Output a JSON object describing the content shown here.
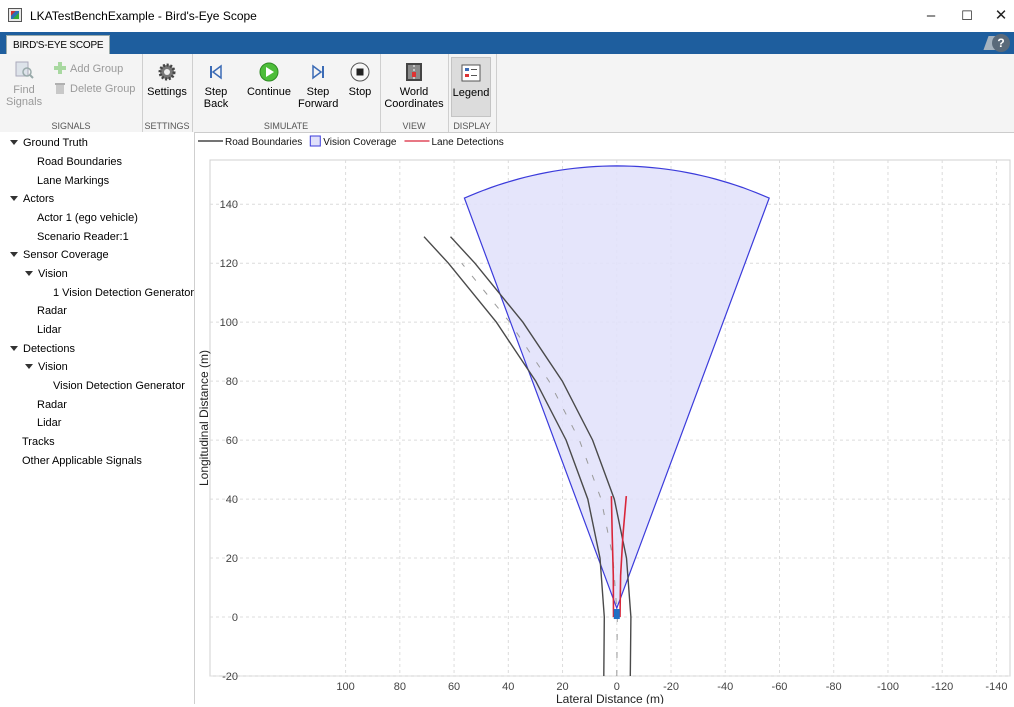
{
  "window": {
    "title": "LKATestBenchExample - Bird's-Eye Scope",
    "minimize": "–",
    "maximize": "☐",
    "close": "✕"
  },
  "tabstrip": {
    "tab_label": "BIRD'S-EYE SCOPE",
    "help_label": "?"
  },
  "toolstrip": {
    "signals": {
      "label": "SIGNALS",
      "find_signals": "Find Signals",
      "add_group": "Add Group",
      "delete_group": "Delete Group"
    },
    "settings": {
      "label": "SETTINGS",
      "settings_button": "Settings"
    },
    "simulate": {
      "label": "SIMULATE",
      "step_back": "Step Back",
      "continue": "Continue",
      "step_forward": "Step Forward",
      "stop": "Stop"
    },
    "view": {
      "label": "VIEW",
      "world_coordinates": "World Coordinates"
    },
    "display": {
      "label": "DISPLAY",
      "legend": "Legend"
    }
  },
  "tree": {
    "ground_truth": "Ground Truth",
    "road_boundaries": "Road Boundaries",
    "lane_markings": "Lane Markings",
    "actors": "Actors",
    "actor_1": "Actor 1 (ego vehicle)",
    "scenario_reader": "Scenario Reader:1",
    "sensor_coverage": "Sensor Coverage",
    "coverage_vision": "Vision",
    "coverage_vision_item": "1 Vision Detection Generator",
    "coverage_radar": "Radar",
    "coverage_lidar": "Lidar",
    "detections": "Detections",
    "detections_vision": "Vision",
    "detections_vision_item": "Vision Detection Generator",
    "detections_radar": "Radar",
    "detections_lidar": "Lidar",
    "tracks": "Tracks",
    "other_signals": "Other Applicable Signals"
  },
  "chart_data": {
    "type": "line",
    "xlabel": "Lateral Distance (m)",
    "ylabel": "Longitudinal Distance (m)",
    "xlim": [
      150,
      -145
    ],
    "ylim": [
      -20,
      155
    ],
    "x_ticks": [
      100,
      80,
      60,
      40,
      20,
      0,
      -20,
      -40,
      -60,
      -80,
      -100,
      -120,
      -140
    ],
    "y_ticks": [
      -20,
      0,
      20,
      40,
      60,
      80,
      100,
      120,
      140
    ],
    "grid": true,
    "legend_position": "top-left, outside axes",
    "legend": [
      {
        "name": "Road Boundaries",
        "color": "#222222",
        "style": "line"
      },
      {
        "name": "Vision Coverage",
        "color": "#3b3bdb",
        "style": "patch"
      },
      {
        "name": "Lane Detections",
        "color": "#d9263a",
        "style": "line"
      }
    ],
    "vision_coverage": {
      "apex": [
        0,
        3
      ],
      "range_m": 150,
      "half_fov_deg": 22,
      "fill": "#e0e0fa",
      "edge": "#3b3bdb"
    },
    "road_boundaries": [
      {
        "x": [
          -5,
          -5.2,
          -3.6,
          0.9,
          8.9,
          20.1,
          34.6,
          52.3,
          61.3
        ],
        "y": [
          -20,
          0,
          20,
          40,
          60,
          80,
          100,
          120,
          129
        ]
      },
      {
        "x": [
          4.8,
          4.6,
          6.2,
          10.7,
          18.7,
          29.9,
          44.4,
          62.1,
          71.1
        ],
        "y": [
          -20,
          0,
          20,
          40,
          60,
          80,
          100,
          120,
          129
        ]
      }
    ],
    "lane_markings": [
      {
        "x": [
          0,
          -0.2,
          1.4,
          5.8,
          13.8,
          25.0,
          39.5,
          57.2
        ],
        "y": [
          -20,
          0,
          20,
          40,
          60,
          80,
          100,
          120
        ]
      }
    ],
    "lane_detections": [
      {
        "x": [
          -1.2,
          -1.4,
          -2.3,
          -3.5
        ],
        "y": [
          0,
          14,
          28,
          41
        ]
      },
      {
        "x": [
          1.2,
          1.3,
          1.7,
          2.0
        ],
        "y": [
          0,
          14,
          28,
          41
        ]
      }
    ],
    "ego_vehicle": {
      "x": 0,
      "y": 0,
      "color": "#1f6fc5"
    }
  }
}
